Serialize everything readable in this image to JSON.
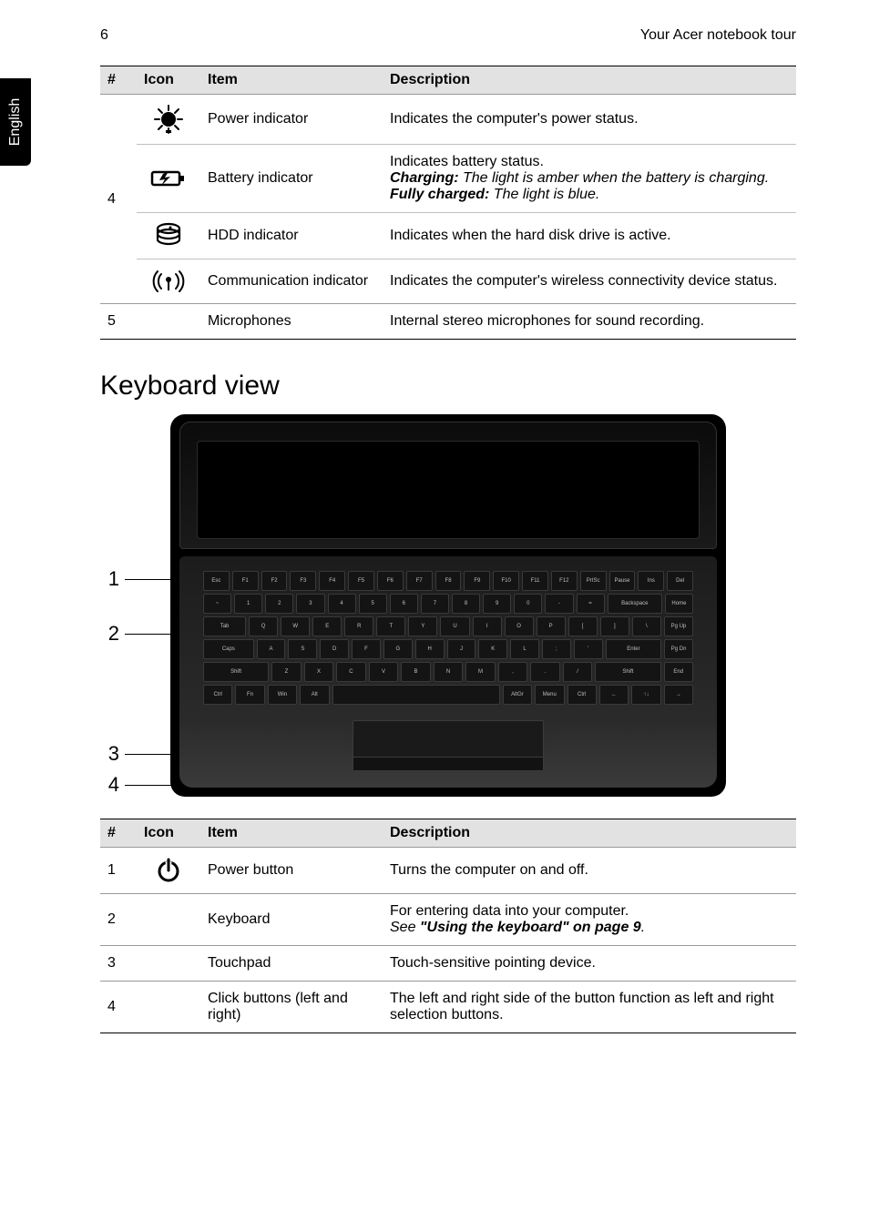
{
  "meta": {
    "page_number": "6",
    "section_title": "Your Acer notebook tour",
    "language_tab": "English"
  },
  "table1": {
    "headers": {
      "num": "#",
      "icon": "Icon",
      "item": "Item",
      "desc": "Description"
    },
    "group4_num": "4",
    "rows": {
      "power_indicator": {
        "item": "Power indicator",
        "desc": "Indicates the computer's power status."
      },
      "battery_indicator": {
        "item": "Battery indicator",
        "desc_line1": "Indicates battery status.",
        "desc_charging_label": "Charging:",
        "desc_charging_text": " The light is amber when the battery is charging.",
        "desc_full_label": "Fully charged:",
        "desc_full_text": " The light is blue."
      },
      "hdd_indicator": {
        "item": "HDD indicator",
        "desc": "Indicates when the hard disk drive is active."
      },
      "comm_indicator": {
        "item": "Communication indicator",
        "desc": "Indicates the computer's wireless connectivity device status."
      },
      "microphones": {
        "num": "5",
        "item": "Microphones",
        "desc": "Internal stereo microphones for sound recording."
      }
    }
  },
  "keyboard_view": {
    "heading": "Keyboard view",
    "callouts": {
      "c1": "1",
      "c2": "2",
      "c3": "3",
      "c4": "4"
    },
    "keys_row1": [
      "Esc",
      "F1",
      "F2",
      "F3",
      "F4",
      "F5",
      "F6",
      "F7",
      "F8",
      "F9",
      "F10",
      "F11",
      "F12",
      "PrtSc",
      "Pause",
      "Ins",
      "Del"
    ],
    "keys_row2": [
      "~",
      "1",
      "2",
      "3",
      "4",
      "5",
      "6",
      "7",
      "8",
      "9",
      "0",
      "-",
      "=",
      "Backspace",
      "Home"
    ],
    "keys_row3": [
      "Tab",
      "Q",
      "W",
      "E",
      "R",
      "T",
      "Y",
      "U",
      "I",
      "O",
      "P",
      "[",
      "]",
      "\\",
      "Pg Up"
    ],
    "keys_row4": [
      "Caps",
      "A",
      "S",
      "D",
      "F",
      "G",
      "H",
      "J",
      "K",
      "L",
      ";",
      "'",
      "Enter",
      "Pg Dn"
    ],
    "keys_row5": [
      "Shift",
      "Z",
      "X",
      "C",
      "V",
      "B",
      "N",
      "M",
      ",",
      ".",
      "/",
      "Shift",
      "End"
    ],
    "keys_row6": [
      "Ctrl",
      "Fn",
      "Win",
      "Alt",
      "",
      "AltGr",
      "Menu",
      "Ctrl",
      "←",
      "↑↓",
      "→"
    ]
  },
  "table2": {
    "headers": {
      "num": "#",
      "icon": "Icon",
      "item": "Item",
      "desc": "Description"
    },
    "rows": {
      "power_button": {
        "num": "1",
        "item": "Power button",
        "desc": "Turns the computer on and off."
      },
      "keyboard": {
        "num": "2",
        "item": "Keyboard",
        "desc_line1": "For entering data into your computer.",
        "desc_see": "See ",
        "desc_ref": "\"Using the keyboard\" on page 9",
        "desc_period": "."
      },
      "touchpad": {
        "num": "3",
        "item": "Touchpad",
        "desc": "Touch-sensitive pointing device."
      },
      "click_buttons": {
        "num": "4",
        "item": "Click buttons (left and right)",
        "desc": "The left and right side of the button function as left and right selection buttons."
      }
    }
  },
  "icons": {
    "power_indicator": "power-indicator-icon",
    "battery_indicator": "battery-indicator-icon",
    "hdd_indicator": "hdd-indicator-icon",
    "comm_indicator": "wireless-icon",
    "power_button": "power-button-icon"
  },
  "colors": {
    "header_bg": "#e2e2e2",
    "border_light": "#9a9a9a",
    "border_inner": "#c0c0c0",
    "text": "#000000",
    "tab_bg": "#000000",
    "tab_fg": "#ffffff",
    "laptop_body": "#000000",
    "key_bg": "#141414",
    "key_border": "#3a3a3a",
    "key_fg": "#bfbfbf"
  }
}
